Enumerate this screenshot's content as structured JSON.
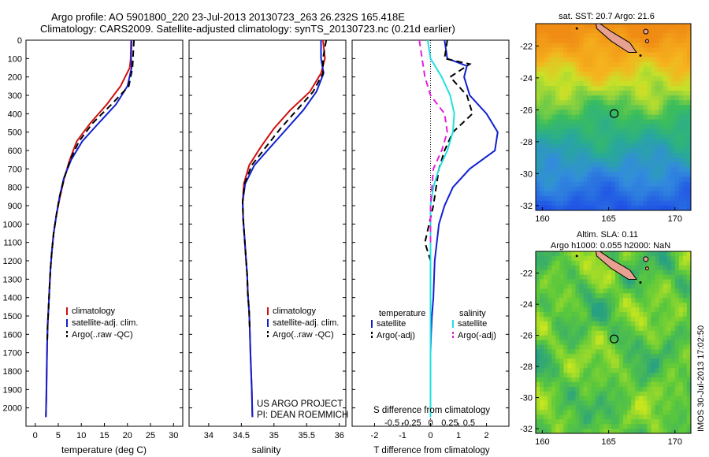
{
  "header": {
    "line1": "Argo profile: AO 5901800_220 23-Jul-2013 20130723_263 26.232S 165.418E",
    "line2": "Climatology: CARS2009. Satellite-adjusted climatology: synTS_20130723.nc (0.21d earlier)"
  },
  "colors": {
    "climatology": "#d01010",
    "satellite": "#1020d0",
    "argo": "#000000",
    "satellite_salinity": "#20e0e0",
    "argo_salinity": "#e020e0"
  },
  "chart_data": [
    {
      "type": "line",
      "name": "temperature-profile",
      "xlabel": "temperature (deg C)",
      "xlim": [
        -2,
        32
      ],
      "ylim": [
        2100,
        0
      ],
      "xticks": [
        "0",
        "5",
        "10",
        "15",
        "20",
        "25",
        "30"
      ],
      "yticks": [
        "0",
        "100",
        "200",
        "300",
        "400",
        "500",
        "600",
        "700",
        "800",
        "900",
        "1000",
        "1100",
        "1200",
        "1300",
        "1400",
        "1500",
        "1600",
        "1700",
        "1800",
        "1900",
        "2000"
      ],
      "legend": [
        "climatology",
        "satellite-adj. clim.",
        "Argo(..raw -QC)"
      ],
      "series": [
        {
          "name": "climatology",
          "style": "solid",
          "color_key": "climatology",
          "x": [
            20.8,
            20.7,
            20.5,
            18.5,
            15.5,
            12.0,
            9.0,
            7.5,
            6.3,
            5.4,
            4.6,
            4.0,
            3.6,
            3.3,
            3.1,
            2.9,
            2.7,
            2.6,
            2.5,
            2.4,
            2.3
          ],
          "y": [
            0,
            100,
            150,
            250,
            350,
            450,
            550,
            650,
            750,
            850,
            950,
            1050,
            1150,
            1250,
            1350,
            1450,
            1550,
            1650,
            1800,
            1950,
            2050
          ]
        },
        {
          "name": "satellite-adj. clim.",
          "style": "solid",
          "color_key": "satellite",
          "x": [
            20.9,
            20.8,
            20.9,
            20.0,
            17.5,
            13.8,
            10.2,
            7.8,
            6.2,
            5.3,
            4.6,
            4.0,
            3.6,
            3.3,
            3.1,
            2.9,
            2.7,
            2.6,
            2.5,
            2.4,
            2.3
          ],
          "y": [
            0,
            100,
            150,
            250,
            350,
            450,
            550,
            650,
            750,
            850,
            950,
            1050,
            1150,
            1250,
            1350,
            1450,
            1550,
            1650,
            1800,
            1950,
            2050
          ]
        },
        {
          "name": "Argo(..raw -QC)",
          "style": "dashed",
          "color_key": "argo",
          "x": [
            21.4,
            21.2,
            21.1,
            20.3,
            16.5,
            12.5,
            9.5,
            7.6,
            6.3,
            5.3,
            4.6,
            4.0,
            3.6,
            3.3,
            3.1,
            2.9,
            2.7,
            2.6
          ],
          "y": [
            0,
            100,
            150,
            250,
            350,
            450,
            550,
            650,
            750,
            850,
            950,
            1050,
            1150,
            1250,
            1350,
            1450,
            1550,
            1650
          ]
        }
      ]
    },
    {
      "type": "line",
      "name": "salinity-profile",
      "xlabel": "salinity",
      "xlim": [
        33.7,
        36.1
      ],
      "ylim": [
        2100,
        0
      ],
      "xticks": [
        "34",
        "34.5",
        "35",
        "35.5",
        "36"
      ],
      "legend": [
        "climatology",
        "satellite-adj. clim.",
        "Argo(..raw -QC)"
      ],
      "series": [
        {
          "name": "climatology",
          "style": "solid",
          "color_key": "climatology",
          "x": [
            35.75,
            35.78,
            35.72,
            35.55,
            35.25,
            35.0,
            34.8,
            34.62,
            34.54,
            34.52,
            34.53,
            34.55,
            34.57,
            34.59,
            34.6,
            34.62,
            34.63,
            34.64,
            34.66,
            34.67
          ],
          "y": [
            0,
            100,
            180,
            280,
            380,
            480,
            580,
            680,
            780,
            880,
            980,
            1080,
            1180,
            1280,
            1380,
            1480,
            1580,
            1700,
            1900,
            2050
          ]
        },
        {
          "name": "satellite-adj. clim.",
          "style": "solid",
          "color_key": "satellite",
          "x": [
            35.72,
            35.72,
            35.76,
            35.65,
            35.45,
            35.2,
            34.95,
            34.7,
            34.56,
            34.52,
            34.53,
            34.55,
            34.57,
            34.59,
            34.6,
            34.62,
            34.63,
            34.64,
            34.66,
            34.67
          ],
          "y": [
            0,
            100,
            180,
            280,
            380,
            480,
            580,
            680,
            780,
            880,
            980,
            1080,
            1180,
            1280,
            1380,
            1480,
            1580,
            1700,
            1900,
            2050
          ]
        },
        {
          "name": "Argo(..raw -QC)",
          "style": "dashed",
          "color_key": "argo",
          "x": [
            35.8,
            35.75,
            35.75,
            35.6,
            35.35,
            35.1,
            34.88,
            34.66,
            34.55,
            34.52,
            34.53,
            34.55,
            34.57,
            34.59,
            34.6,
            34.62,
            34.63
          ],
          "y": [
            0,
            100,
            180,
            280,
            380,
            480,
            580,
            680,
            780,
            880,
            980,
            1080,
            1180,
            1280,
            1380,
            1480,
            1580
          ]
        }
      ]
    },
    {
      "type": "line",
      "name": "difference-profile",
      "xlabel_s": "S difference from climatology",
      "xlabel_t": "T difference from climatology",
      "xlim": [
        -2.8,
        2.8
      ],
      "ylim": [
        2100,
        0
      ],
      "xticks_t": [
        "-2",
        "-1",
        "0",
        "1",
        "2"
      ],
      "xticks_s": [
        "-0.5",
        "-0.25",
        "0",
        "0.25",
        "0.5"
      ],
      "legend_temperature": [
        "temperature",
        "satellite",
        "Argo(-adj)"
      ],
      "legend_salinity": [
        "salinity",
        "satellite",
        "Argo(-adj)"
      ],
      "series": [
        {
          "name": "temperature satellite",
          "style": "solid",
          "color_key": "satellite",
          "x": [
            0.5,
            0.6,
            1.3,
            1.2,
            1.4,
            2.0,
            2.4,
            2.3,
            1.4,
            0.8,
            0.5,
            0.3,
            0.15,
            0.1,
            0.05,
            0.02,
            0.0,
            0.0,
            0.0,
            0.0
          ],
          "y": [
            0,
            100,
            140,
            200,
            300,
            400,
            500,
            600,
            700,
            800,
            900,
            1000,
            1200,
            1400,
            1500,
            1600,
            1700,
            1800,
            1900,
            2050
          ]
        },
        {
          "name": "temperature Argo(-adj)",
          "style": "dashed",
          "color_key": "argo",
          "x": [
            0.6,
            0.5,
            1.4,
            0.7,
            1.3,
            1.5,
            0.8,
            0.5,
            0.3,
            0.2,
            0.1,
            -0.2,
            0.0,
            0.0,
            0.0,
            0.0
          ],
          "y": [
            0,
            100,
            130,
            200,
            300,
            400,
            500,
            600,
            700,
            800,
            900,
            1100,
            1200,
            1350,
            1500,
            1650
          ]
        },
        {
          "name": "salinity satellite",
          "style": "solid",
          "color_key": "satellite_salinity",
          "x": [
            -0.1,
            0.0,
            0.4,
            0.7,
            0.85,
            0.8,
            0.6,
            0.3,
            0.1,
            0.0,
            0.0,
            0.0,
            0.0,
            0.0,
            0.0
          ],
          "y": [
            0,
            100,
            200,
            300,
            400,
            500,
            600,
            700,
            800,
            900,
            1000,
            1100,
            1300,
            1600,
            2050
          ]
        },
        {
          "name": "salinity Argo(-adj)",
          "style": "dashed",
          "color_key": "argo_salinity",
          "x": [
            -0.4,
            -0.3,
            -0.2,
            0.0,
            0.5,
            0.6,
            0.4,
            0.1,
            0.05,
            0.0,
            0.0,
            0.0
          ],
          "y": [
            0,
            100,
            200,
            300,
            400,
            500,
            600,
            700,
            800,
            900,
            1000,
            1100
          ]
        }
      ]
    },
    {
      "type": "heatmap",
      "name": "sst-map",
      "title": "sat. SST: 20.7 Argo: 21.6",
      "xlim": [
        159.5,
        171.2
      ],
      "ylim": [
        -32.3,
        -20.6
      ],
      "xticks": [
        "160",
        "165",
        "170"
      ],
      "yticks": [
        "-22",
        "-24",
        "-26",
        "-28",
        "-30",
        "-32"
      ],
      "argo_position": [
        165.418,
        -26.232
      ]
    },
    {
      "type": "heatmap",
      "name": "sla-map",
      "title": "Altim. SLA: 0.11",
      "subtitle": "Argo h1000: 0.055 h2000: NaN",
      "xlim": [
        159.5,
        171.2
      ],
      "ylim": [
        -32.3,
        -20.6
      ],
      "xticks": [
        "160",
        "165",
        "170"
      ],
      "yticks": [
        "-22",
        "-24",
        "-26",
        "-28",
        "-30",
        "-32"
      ],
      "argo_position": [
        165.418,
        -26.232
      ]
    }
  ],
  "annotations": {
    "project": "US ARGO PROJECT",
    "pi": "PI: DEAN ROEMMICH",
    "stamp": "IMOS 30-Jul-2013 17:02:50"
  }
}
